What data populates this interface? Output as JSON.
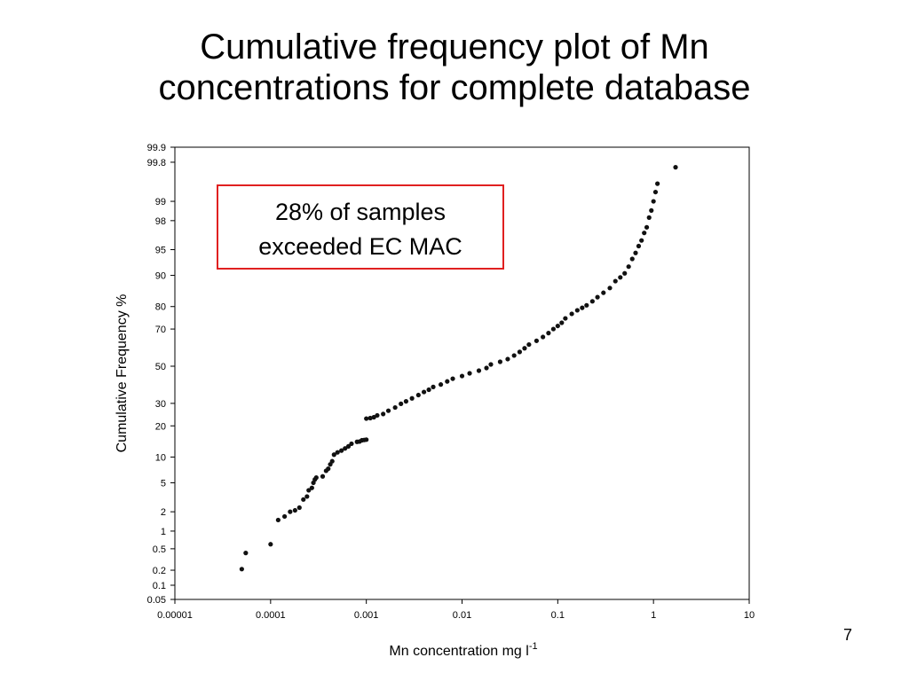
{
  "slide": {
    "title_line1": "Cumulative frequency plot of Mn",
    "title_line2": "concentrations for complete database",
    "page_number": "7"
  },
  "chart_data": {
    "type": "scatter",
    "title": "",
    "xlabel_main": "Mn concentration mg l",
    "xlabel_sup": "-1",
    "ylabel": "Cumulative Frequency %",
    "x_scale": "log",
    "y_scale": "probability",
    "xlim": [
      1e-05,
      10
    ],
    "ylim": [
      0.05,
      99.9
    ],
    "x_ticks": [
      {
        "value": 1e-05,
        "label": "0.00001"
      },
      {
        "value": 0.0001,
        "label": "0.0001"
      },
      {
        "value": 0.001,
        "label": "0.001"
      },
      {
        "value": 0.01,
        "label": "0.01"
      },
      {
        "value": 0.1,
        "label": "0.1"
      },
      {
        "value": 1,
        "label": "1"
      },
      {
        "value": 10,
        "label": "10"
      }
    ],
    "y_ticks": [
      {
        "value": 0.05,
        "label": "0.05"
      },
      {
        "value": 0.1,
        "label": "0.1"
      },
      {
        "value": 0.2,
        "label": "0.2"
      },
      {
        "value": 0.5,
        "label": "0.5"
      },
      {
        "value": 1,
        "label": "1"
      },
      {
        "value": 2,
        "label": "2"
      },
      {
        "value": 5,
        "label": "5"
      },
      {
        "value": 10,
        "label": "10"
      },
      {
        "value": 20,
        "label": "20"
      },
      {
        "value": 30,
        "label": "30"
      },
      {
        "value": 50,
        "label": "50"
      },
      {
        "value": 70,
        "label": "70"
      },
      {
        "value": 80,
        "label": "80"
      },
      {
        "value": 90,
        "label": "90"
      },
      {
        "value": 95,
        "label": "95"
      },
      {
        "value": 98,
        "label": "98"
      },
      {
        "value": 99,
        "label": "99"
      },
      {
        "value": 99.8,
        "label": "99.8"
      },
      {
        "value": 99.9,
        "label": "99.9"
      }
    ],
    "grid": false,
    "marker_color": "#111111",
    "annotation": {
      "line1": "28% of samples",
      "line2": "exceeded EC MAC",
      "border_color": "#e02020",
      "placement": "upper-left of plot area"
    },
    "series": [
      {
        "points": [
          [
            5e-05,
            0.21
          ],
          [
            5.5e-05,
            0.42
          ],
          [
            0.0001,
            0.6
          ],
          [
            0.00012,
            1.5
          ],
          [
            0.00014,
            1.7
          ],
          [
            0.00016,
            2.0
          ],
          [
            0.00018,
            2.1
          ],
          [
            0.0002,
            2.3
          ],
          [
            0.00022,
            3.0
          ],
          [
            0.00024,
            3.3
          ],
          [
            0.00025,
            4.0
          ],
          [
            0.00027,
            4.3
          ],
          [
            0.00028,
            5.0
          ],
          [
            0.00029,
            5.5
          ],
          [
            0.0003,
            5.8
          ],
          [
            0.00035,
            6.0
          ],
          [
            0.00038,
            7.0
          ],
          [
            0.0004,
            7.4
          ],
          [
            0.00042,
            8.3
          ],
          [
            0.00044,
            9.0
          ],
          [
            0.00046,
            10.6
          ],
          [
            0.0005,
            11.2
          ],
          [
            0.00055,
            11.7
          ],
          [
            0.0006,
            12.3
          ],
          [
            0.00065,
            12.9
          ],
          [
            0.0007,
            13.7
          ],
          [
            0.0008,
            14.3
          ],
          [
            0.00085,
            14.4
          ],
          [
            0.0009,
            14.8
          ],
          [
            0.00095,
            14.9
          ],
          [
            0.001,
            15.0
          ],
          [
            0.001,
            23.0
          ],
          [
            0.0011,
            23.2
          ],
          [
            0.0012,
            23.6
          ],
          [
            0.0013,
            24.4
          ],
          [
            0.0015,
            25.0
          ],
          [
            0.0017,
            26.5
          ],
          [
            0.002,
            28.0
          ],
          [
            0.0023,
            29.8
          ],
          [
            0.0026,
            31.0
          ],
          [
            0.003,
            32.5
          ],
          [
            0.0035,
            34.2
          ],
          [
            0.004,
            35.8
          ],
          [
            0.0045,
            37.0
          ],
          [
            0.005,
            38.5
          ],
          [
            0.006,
            39.8
          ],
          [
            0.007,
            41.5
          ],
          [
            0.008,
            43.0
          ],
          [
            0.01,
            44.5
          ],
          [
            0.012,
            46.0
          ],
          [
            0.015,
            47.5
          ],
          [
            0.018,
            49.0
          ],
          [
            0.02,
            51.0
          ],
          [
            0.025,
            52.5
          ],
          [
            0.03,
            54.0
          ],
          [
            0.035,
            56.0
          ],
          [
            0.04,
            58.0
          ],
          [
            0.045,
            60.0
          ],
          [
            0.05,
            62.0
          ],
          [
            0.06,
            64.0
          ],
          [
            0.07,
            66.0
          ],
          [
            0.08,
            68.0
          ],
          [
            0.09,
            70.0
          ],
          [
            0.1,
            71.5
          ],
          [
            0.11,
            73.0
          ],
          [
            0.12,
            75.0
          ],
          [
            0.14,
            77.0
          ],
          [
            0.16,
            78.5
          ],
          [
            0.18,
            79.5
          ],
          [
            0.2,
            80.5
          ],
          [
            0.23,
            82.0
          ],
          [
            0.26,
            83.5
          ],
          [
            0.3,
            85.0
          ],
          [
            0.35,
            86.5
          ],
          [
            0.4,
            88.5
          ],
          [
            0.45,
            89.5
          ],
          [
            0.5,
            90.5
          ],
          [
            0.55,
            92.0
          ],
          [
            0.6,
            93.5
          ],
          [
            0.65,
            94.5
          ],
          [
            0.7,
            95.5
          ],
          [
            0.75,
            96.2
          ],
          [
            0.8,
            97.0
          ],
          [
            0.85,
            97.5
          ],
          [
            0.9,
            98.2
          ],
          [
            0.95,
            98.6
          ],
          [
            1.0,
            99.0
          ],
          [
            1.05,
            99.3
          ],
          [
            1.1,
            99.5
          ],
          [
            1.7,
            99.75
          ]
        ]
      }
    ]
  }
}
